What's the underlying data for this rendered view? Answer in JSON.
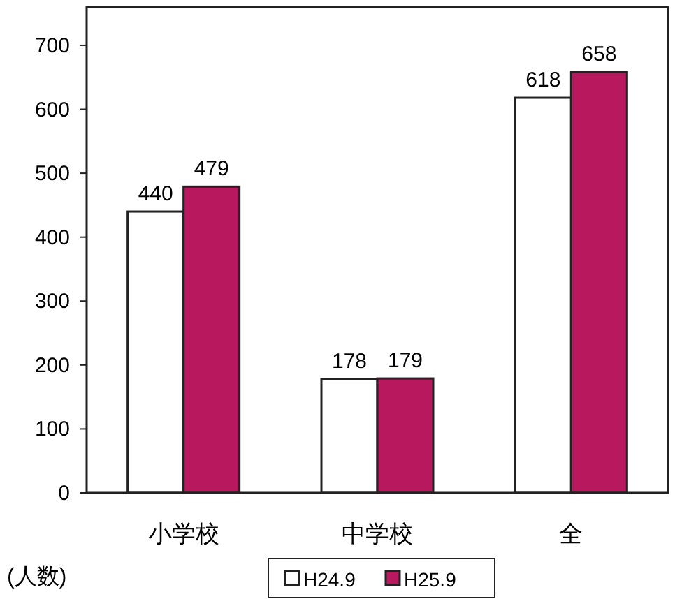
{
  "chart_data": {
    "type": "bar",
    "ylabel": "(人数)",
    "categories": [
      "小学校",
      "中学校",
      "全"
    ],
    "series": [
      {
        "name": "H24.9",
        "color": "#ffffff",
        "values": [
          440,
          178,
          618
        ]
      },
      {
        "name": "H25.9",
        "color": "#b8185e",
        "values": [
          479,
          179,
          658
        ]
      }
    ],
    "ylim": [
      0,
      760
    ],
    "yticks": [
      0,
      100,
      200,
      300,
      400,
      500,
      600,
      700
    ],
    "data_labels": true,
    "legend": "bottom",
    "grid": false
  }
}
